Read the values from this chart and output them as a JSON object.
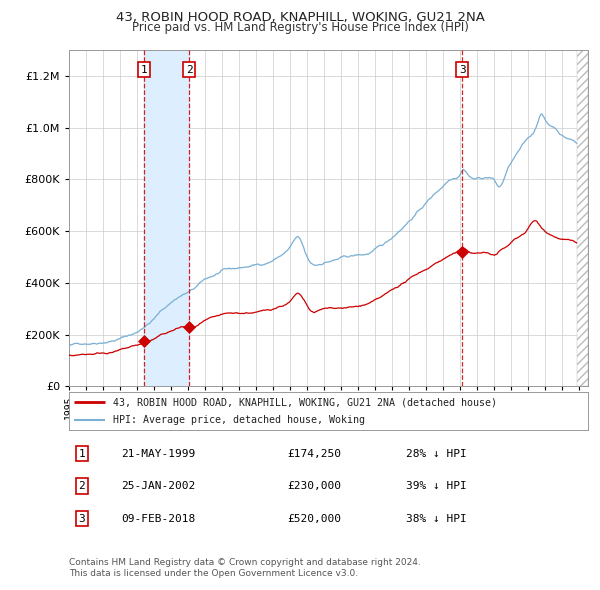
{
  "title_line1": "43, ROBIN HOOD ROAD, KNAPHILL, WOKING, GU21 2NA",
  "title_line2": "Price paid vs. HM Land Registry's House Price Index (HPI)",
  "legend_label_red": "43, ROBIN HOOD ROAD, KNAPHILL, WOKING, GU21 2NA (detached house)",
  "legend_label_blue": "HPI: Average price, detached house, Woking",
  "footnote_line1": "Contains HM Land Registry data © Crown copyright and database right 2024.",
  "footnote_line2": "This data is licensed under the Open Government Licence v3.0.",
  "table_dates": [
    "21-MAY-1999",
    "25-JAN-2002",
    "09-FEB-2018"
  ],
  "table_prices": [
    "£174,250",
    "£230,000",
    "£520,000"
  ],
  "table_hpi": [
    "28% ↓ HPI",
    "39% ↓ HPI",
    "38% ↓ HPI"
  ],
  "trans_decimal": [
    1999.388,
    2002.063,
    2018.104
  ],
  "trans_prices": [
    174250,
    230000,
    520000
  ],
  "red_color": "#cc0000",
  "blue_color": "#7bafd4",
  "shade_color": "#ddeeff",
  "grid_color": "#cccccc",
  "bg_color": "#ffffff",
  "ylim": [
    0,
    1300000
  ],
  "yticks": [
    0,
    200000,
    400000,
    600000,
    800000,
    1000000,
    1200000
  ],
  "xlim_start": 1995,
  "xlim_end": 2025.5,
  "hpi_anchors_x": [
    1995.0,
    1995.5,
    1996.0,
    1996.5,
    1997.0,
    1997.5,
    1998.0,
    1998.5,
    1999.0,
    1999.388,
    1999.8,
    2000.3,
    2000.8,
    2001.3,
    2001.8,
    2002.063,
    2002.5,
    2003.0,
    2003.5,
    2004.0,
    2004.5,
    2005.0,
    2005.5,
    2006.0,
    2006.5,
    2007.0,
    2007.5,
    2008.0,
    2008.5,
    2009.0,
    2009.5,
    2010.0,
    2010.5,
    2011.0,
    2011.5,
    2012.0,
    2012.5,
    2013.0,
    2013.5,
    2014.0,
    2014.5,
    2015.0,
    2015.5,
    2016.0,
    2016.5,
    2017.0,
    2017.5,
    2018.0,
    2018.104,
    2018.5,
    2019.0,
    2019.5,
    2020.0,
    2020.3,
    2020.7,
    2021.0,
    2021.5,
    2022.0,
    2022.5,
    2022.7,
    2023.0,
    2023.5,
    2024.0,
    2024.5,
    2024.83
  ],
  "hpi_anchors_y": [
    158000,
    163000,
    168000,
    173000,
    180000,
    187000,
    196000,
    208000,
    220000,
    242000,
    262000,
    295000,
    325000,
    352000,
    370000,
    377000,
    395000,
    420000,
    435000,
    450000,
    453000,
    457000,
    462000,
    468000,
    475000,
    490000,
    510000,
    540000,
    570000,
    490000,
    460000,
    472000,
    480000,
    488000,
    492000,
    496000,
    500000,
    515000,
    532000,
    560000,
    595000,
    630000,
    665000,
    700000,
    735000,
    768000,
    800000,
    825000,
    838000,
    820000,
    808000,
    812000,
    800000,
    775000,
    830000,
    868000,
    915000,
    955000,
    1010000,
    1050000,
    1025000,
    1000000,
    970000,
    955000,
    940000
  ],
  "red_anchors_x": [
    1995.0,
    1995.5,
    1996.0,
    1996.5,
    1997.0,
    1997.5,
    1998.0,
    1998.5,
    1999.0,
    1999.388,
    1999.8,
    2000.3,
    2000.8,
    2001.3,
    2001.8,
    2002.063,
    2002.5,
    2003.0,
    2003.5,
    2004.0,
    2004.5,
    2005.0,
    2005.5,
    2006.0,
    2006.5,
    2007.0,
    2007.5,
    2008.0,
    2008.5,
    2009.0,
    2009.3,
    2009.7,
    2010.0,
    2010.5,
    2011.0,
    2011.5,
    2012.0,
    2012.5,
    2013.0,
    2013.5,
    2014.0,
    2014.5,
    2015.0,
    2015.5,
    2016.0,
    2016.5,
    2017.0,
    2017.5,
    2018.0,
    2018.104,
    2018.5,
    2019.0,
    2019.5,
    2020.0,
    2020.3,
    2020.7,
    2021.0,
    2021.5,
    2022.0,
    2022.3,
    2022.7,
    2023.0,
    2023.5,
    2024.0,
    2024.5,
    2024.83
  ],
  "red_anchors_y": [
    120000,
    124000,
    128000,
    132000,
    137000,
    142000,
    149000,
    158000,
    167000,
    174250,
    185000,
    200000,
    215000,
    228000,
    236000,
    230000,
    238000,
    255000,
    263000,
    270000,
    273000,
    274000,
    277000,
    280000,
    284000,
    294000,
    308000,
    325000,
    350000,
    300000,
    278000,
    283000,
    288000,
    292000,
    295000,
    297000,
    300000,
    308000,
    320000,
    336000,
    356000,
    378000,
    398000,
    420000,
    440000,
    462000,
    482000,
    500000,
    515000,
    520000,
    510000,
    505000,
    508000,
    498000,
    515000,
    530000,
    548000,
    572000,
    605000,
    632000,
    615000,
    598000,
    582000,
    572000,
    564000,
    555000
  ]
}
